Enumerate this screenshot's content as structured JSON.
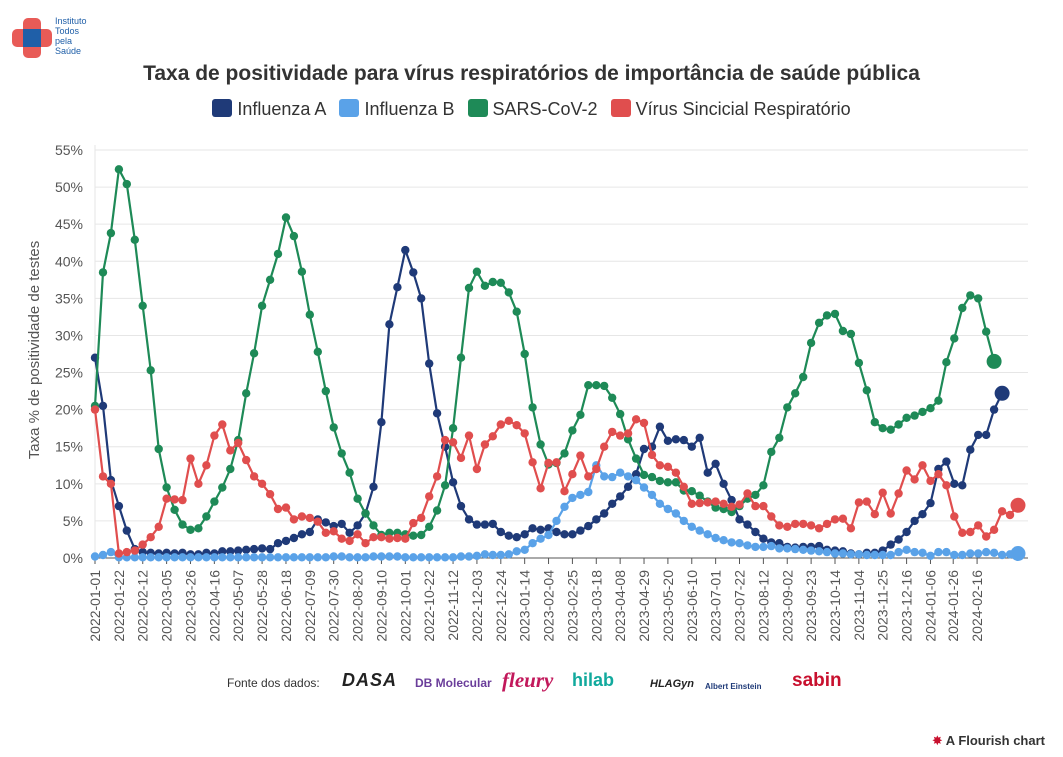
{
  "logo": {
    "name": "Instituto Todos pela Saúde",
    "line1": "Instituto",
    "line2": "Todos",
    "line3": "pela",
    "line4": "Saúde"
  },
  "chart_data": {
    "type": "line",
    "title": "Taxa de positividade para vírus respiratórios de importância de saúde pública",
    "ylabel": "Taxa % de positividade de testes",
    "xlabel": "",
    "ylim": [
      0,
      55
    ],
    "yticks": [
      "0%",
      "5%",
      "10%",
      "15%",
      "20%",
      "25%",
      "30%",
      "35%",
      "40%",
      "45%",
      "50%",
      "55%"
    ],
    "x_start": "2022-01-01",
    "x_step_days": 7,
    "xtick_labels": [
      "2022-01-01",
      "2022-01-22",
      "2022-02-12",
      "2022-03-05",
      "2022-03-26",
      "2022-04-16",
      "2022-05-07",
      "2022-05-28",
      "2022-06-18",
      "2022-07-09",
      "2022-07-30",
      "2022-08-20",
      "2022-09-10",
      "2022-10-01",
      "2022-10-22",
      "2022-11-12",
      "2022-12-03",
      "2022-12-24",
      "2023-01-14",
      "2023-02-04",
      "2023-02-25",
      "2023-03-18",
      "2023-04-08",
      "2023-04-29",
      "2023-05-20",
      "2023-06-10",
      "2023-07-01",
      "2023-07-22",
      "2023-08-12",
      "2023-09-02",
      "2023-09-23",
      "2023-10-14",
      "2023-11-04",
      "2023-11-25",
      "2023-12-16",
      "2024-01-06",
      "2024-01-26",
      "2024-02-16"
    ],
    "legend_position": "top",
    "series": [
      {
        "name": "Influenza A",
        "color": "#1f3a78",
        "values": [
          27,
          20.5,
          10.5,
          7,
          3.7,
          1.2,
          0.8,
          0.7,
          0.6,
          0.7,
          0.6,
          0.7,
          0.5,
          0.5,
          0.7,
          0.6,
          0.9,
          0.9,
          1,
          1.1,
          1.2,
          1.3,
          1.2,
          2,
          2.3,
          2.7,
          3.2,
          3.5,
          5.2,
          4.8,
          4.3,
          4.6,
          3.4,
          4.4,
          6,
          9.6,
          18.3,
          31.5,
          36.5,
          41.5,
          38.5,
          35,
          26.2,
          19.5,
          15,
          10.2,
          7,
          5.2,
          4.5,
          4.5,
          4.6,
          3.5,
          3,
          2.8,
          3.2,
          4,
          3.8,
          4,
          3.5,
          3.2,
          3.2,
          3.7,
          4.3,
          5.2,
          6,
          7.3,
          8.3,
          9.6,
          11.3,
          14.7,
          15,
          17.7,
          15.8,
          16,
          15.9,
          15,
          16.2,
          11.5,
          12.7,
          10,
          7.8,
          5.2,
          4.5,
          3.5,
          2.6,
          2.1,
          2,
          1.5,
          1.4,
          1.5,
          1.5,
          1.6,
          1.1,
          1,
          0.9,
          0.6,
          0.5,
          0.7,
          0.7,
          1,
          1.8,
          2.5,
          3.5,
          5,
          5.9,
          7.4,
          12,
          13,
          10,
          9.8,
          14.6,
          16.6,
          16.6,
          20,
          22.2
        ]
      },
      {
        "name": "Influenza B",
        "color": "#5aa2e8",
        "values": [
          0.2,
          0.4,
          0.8,
          0.1,
          0.1,
          0.1,
          0.1,
          0.1,
          0.1,
          0.1,
          0.1,
          0.1,
          0.1,
          0.1,
          0.1,
          0.1,
          0.1,
          0.1,
          0.1,
          0.1,
          0.1,
          0.1,
          0.1,
          0.1,
          0.1,
          0.1,
          0.1,
          0.1,
          0.1,
          0.1,
          0.2,
          0.2,
          0.1,
          0.1,
          0.1,
          0.2,
          0.2,
          0.2,
          0.2,
          0.1,
          0.1,
          0.1,
          0.1,
          0.1,
          0.1,
          0.1,
          0.2,
          0.2,
          0.3,
          0.5,
          0.4,
          0.4,
          0.5,
          0.9,
          1.1,
          2,
          2.6,
          3.1,
          5,
          6.9,
          8.1,
          8.5,
          8.9,
          12.5,
          11,
          10.9,
          11.5,
          11,
          10.5,
          9.5,
          8.5,
          7.3,
          6.6,
          6,
          5,
          4.2,
          3.7,
          3.2,
          2.7,
          2.4,
          2.1,
          2,
          1.7,
          1.5,
          1.5,
          1.6,
          1.3,
          1.3,
          1.2,
          1.1,
          1,
          0.9,
          0.8,
          0.6,
          0.6,
          0.5,
          0.5,
          0.4,
          0.4,
          0.4,
          0.4,
          0.8,
          1.1,
          0.8,
          0.7,
          0.3,
          0.8,
          0.8,
          0.4,
          0.4,
          0.6,
          0.6,
          0.8,
          0.7,
          0.4,
          0.5,
          0.6
        ]
      },
      {
        "name": "SARS-CoV-2",
        "color": "#1e8a57",
        "values": [
          20.5,
          38.5,
          43.8,
          52.4,
          50.4,
          42.9,
          34,
          25.3,
          14.7,
          9.5,
          6.5,
          4.5,
          3.8,
          4,
          5.6,
          7.6,
          9.5,
          12,
          15.9,
          22.2,
          27.6,
          34,
          37.5,
          41,
          45.9,
          43.4,
          38.6,
          32.8,
          27.8,
          22.5,
          17.6,
          14.1,
          11.5,
          8,
          6,
          4.4,
          3.1,
          3.4,
          3.4,
          3.2,
          3,
          3.1,
          4.2,
          6.4,
          9.8,
          17.5,
          27,
          36.4,
          38.6,
          36.7,
          37.2,
          37.1,
          35.8,
          33.2,
          27.5,
          20.3,
          15.3,
          12.6,
          12.8,
          14.1,
          17.2,
          19.3,
          23.3,
          23.3,
          23.2,
          21.6,
          19.4,
          16,
          13.4,
          11.2,
          10.9,
          10.4,
          10.2,
          10.2,
          9.1,
          9,
          8.4,
          7.6,
          6.8,
          6.6,
          6.2,
          7,
          8,
          8.5,
          9.8,
          14.3,
          16.2,
          20.3,
          22.2,
          24.4,
          29,
          31.7,
          32.7,
          32.9,
          30.6,
          30.2,
          26.3,
          22.6,
          18.3,
          17.5,
          17.3,
          18,
          18.9,
          19.2,
          19.7,
          20.2,
          21.2,
          26.4,
          29.6,
          33.7,
          35.4,
          35,
          30.5,
          26.5
        ]
      },
      {
        "name": "Vírus Sincicial Respiratório",
        "color": "#e04e4e",
        "values": [
          20,
          11,
          10,
          0.6,
          0.8,
          1,
          1.8,
          2.8,
          4.2,
          8,
          7.9,
          7.8,
          13.4,
          10,
          12.5,
          16.5,
          18,
          14.5,
          15.5,
          13.2,
          11,
          10,
          8.6,
          6.6,
          6.8,
          5.2,
          5.6,
          5.4,
          4.9,
          3.4,
          3.6,
          2.6,
          2.3,
          3.2,
          2,
          2.8,
          2.8,
          2.6,
          2.7,
          2.6,
          4.7,
          5.4,
          8.3,
          11,
          15.9,
          15.6,
          13.5,
          16.5,
          12,
          15.3,
          16.4,
          18,
          18.5,
          17.9,
          16.8,
          12.9,
          9.4,
          12.8,
          12.9,
          9,
          11.3,
          13.8,
          11,
          12,
          15,
          17,
          16.5,
          16.8,
          18.7,
          18.2,
          13.9,
          12.5,
          12.3,
          11.5,
          9.6,
          7.3,
          7.4,
          7.5,
          7.6,
          7.3,
          6.9,
          7.2,
          8.7,
          7,
          7,
          5.6,
          4.4,
          4.2,
          4.6,
          4.6,
          4.4,
          4,
          4.6,
          5.2,
          5.3,
          4,
          7.5,
          7.6,
          5.9,
          8.8,
          6,
          8.7,
          11.8,
          10.6,
          12.5,
          10.4,
          11.3,
          9.8,
          5.6,
          3.4,
          3.5,
          4.4,
          2.9,
          3.8,
          6.3,
          5.8,
          7.1
        ]
      }
    ]
  },
  "sources": {
    "label": "Fonte dos dados:",
    "logos": [
      "DASA",
      "DB Molecular",
      "fleury",
      "hilab",
      "HLAGyn",
      "Albert Einstein",
      "sabin"
    ]
  },
  "credit": {
    "text": "A Flourish chart",
    "icon": "flourish-star-icon"
  },
  "colors": {
    "grid": "#e6e6e6",
    "axis": "#555555"
  }
}
